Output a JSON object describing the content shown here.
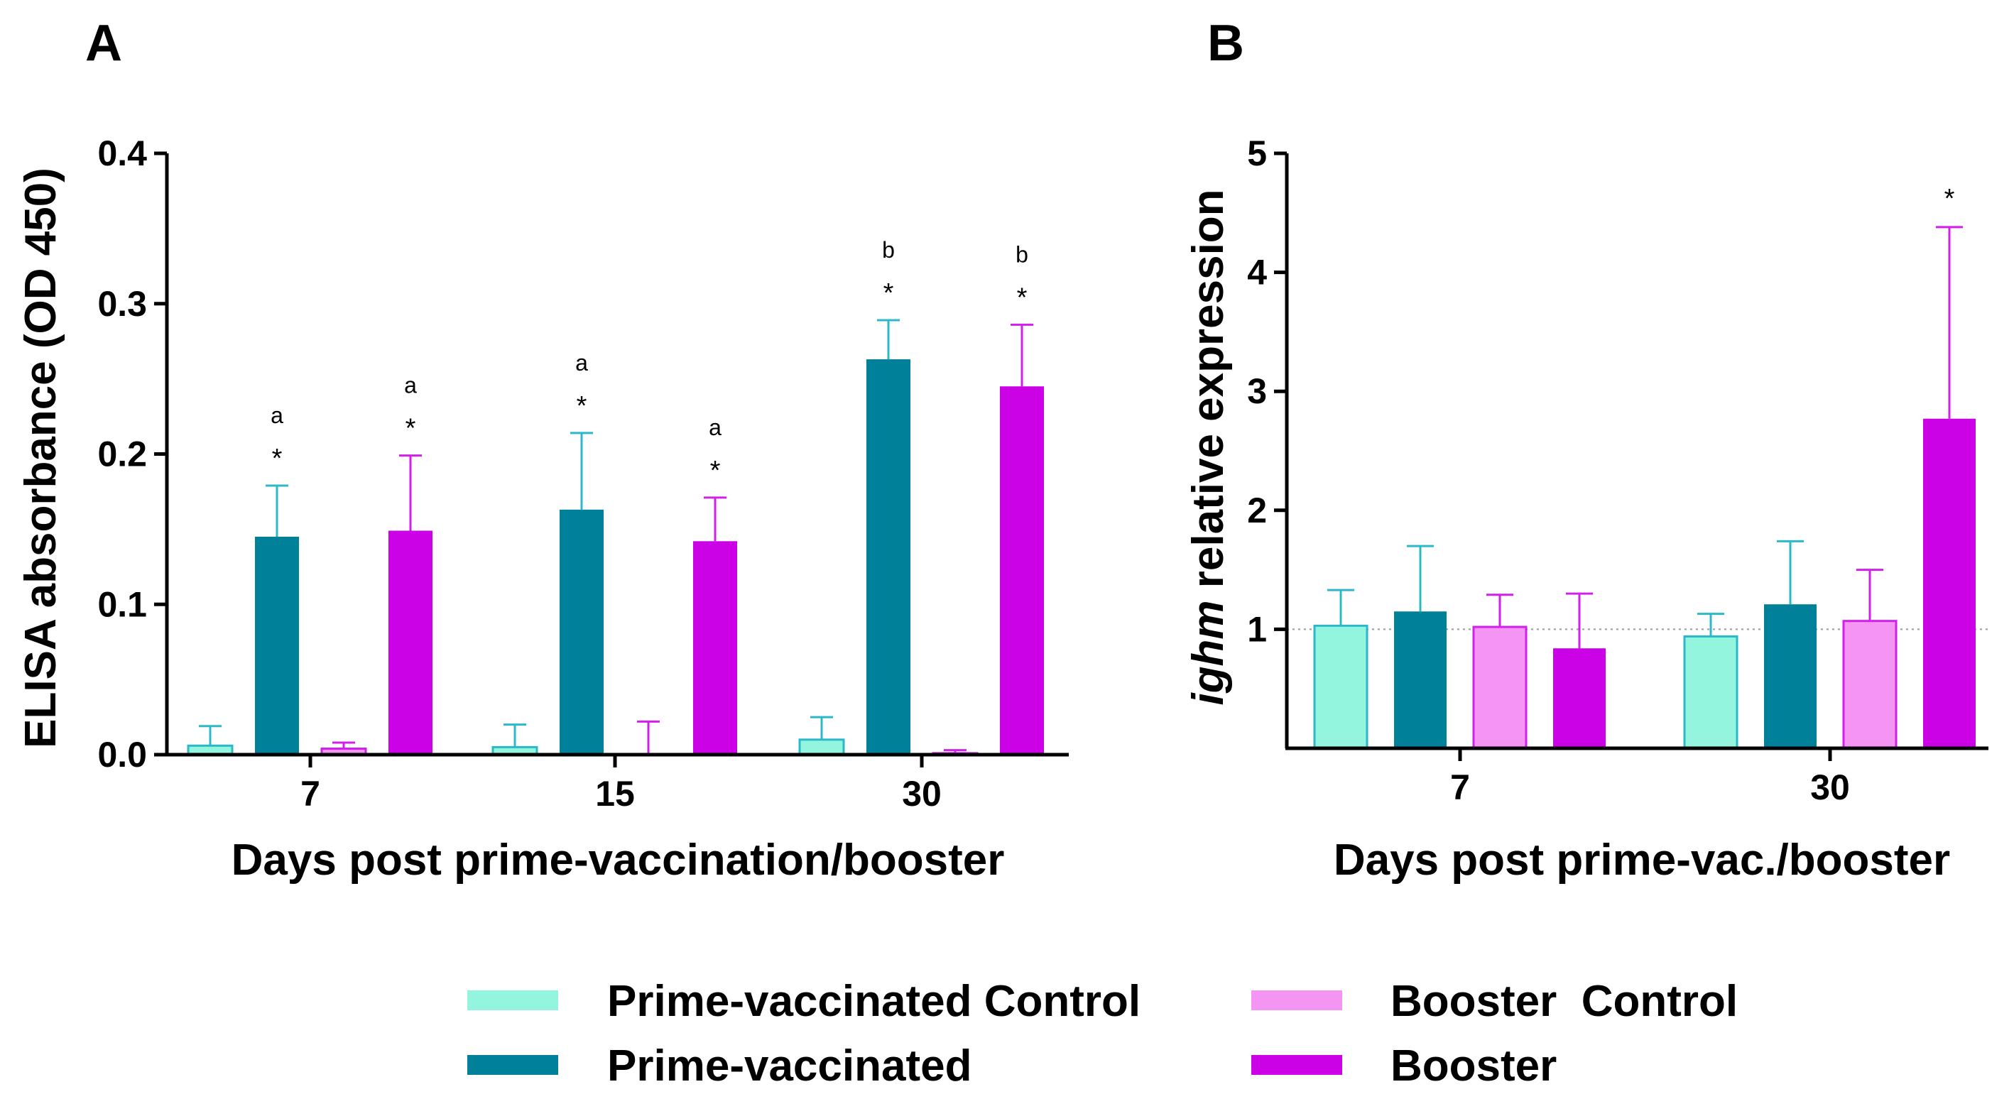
{
  "panel_a_label": "A",
  "panel_b_label": "B",
  "colors": {
    "prime_control": "#93F5DE",
    "prime": "#01809A",
    "booster_control": "#F595F3",
    "booster": "#CC02E6",
    "prime_err": "#2BB9C9",
    "booster_err": "#D31FEA"
  },
  "legend": {
    "items": [
      {
        "key": "prime_control",
        "label": "Prime-vaccinated Control"
      },
      {
        "key": "booster_control",
        "label": "Booster  Control"
      },
      {
        "key": "prime",
        "label": "Prime-vaccinated"
      },
      {
        "key": "booster",
        "label": "Booster"
      }
    ]
  },
  "chart_data": [
    {
      "type": "bar",
      "panel": "A",
      "title": "",
      "xlabel": "Days post prime-vaccination/booster",
      "ylabel": "ELISA absorbance (OD 450)",
      "ylim": [
        0,
        0.4
      ],
      "yticks": [
        "0.0",
        "0.1",
        "0.2",
        "0.3",
        "0.4"
      ],
      "categories": [
        "7",
        "15",
        "30"
      ],
      "series": [
        {
          "name": "Prime-vaccinated Control",
          "key": "prime_control",
          "values": [
            0.006,
            0.005,
            0.01
          ],
          "errors": [
            0.013,
            0.015,
            0.015
          ],
          "annotations": [
            [
              "",
              ""
            ],
            [
              "",
              ""
            ],
            [
              "",
              ""
            ]
          ]
        },
        {
          "name": "Prime-vaccinated",
          "key": "prime",
          "values": [
            0.145,
            0.163,
            0.263
          ],
          "errors": [
            0.034,
            0.051,
            0.026
          ],
          "annotations": [
            [
              "a",
              "*"
            ],
            [
              "a",
              "*"
            ],
            [
              "b",
              "*"
            ]
          ]
        },
        {
          "name": "Booster  Control",
          "key": "booster_control",
          "values": [
            0.004,
            0.0,
            0.001
          ],
          "errors": [
            0.004,
            0.022,
            0.002
          ],
          "annotations": [
            [
              "",
              ""
            ],
            [
              "",
              ""
            ],
            [
              "",
              ""
            ]
          ]
        },
        {
          "name": "Booster",
          "key": "booster",
          "values": [
            0.149,
            0.142,
            0.245
          ],
          "errors": [
            0.05,
            0.029,
            0.041
          ],
          "annotations": [
            [
              "a",
              "*"
            ],
            [
              "a",
              "*"
            ],
            [
              "b",
              "*"
            ]
          ]
        }
      ]
    },
    {
      "type": "bar",
      "panel": "B",
      "title": "",
      "xlabel": "Days post prime-vac./booster",
      "ylabel_italic": "ighm",
      "ylabel_rest": " relative expression",
      "ylim": [
        0,
        5
      ],
      "yticks": [
        "1",
        "2",
        "3",
        "4",
        "5"
      ],
      "reference_line": 1,
      "categories": [
        "7",
        "30"
      ],
      "series": [
        {
          "name": "Prime-vaccinated Control",
          "key": "prime_control",
          "values": [
            1.03,
            0.94
          ],
          "errors": [
            0.3,
            0.19
          ],
          "annotations": [
            "",
            ""
          ]
        },
        {
          "name": "Prime-vaccinated",
          "key": "prime",
          "values": [
            1.15,
            1.21
          ],
          "errors": [
            0.55,
            0.53
          ],
          "annotations": [
            "",
            ""
          ]
        },
        {
          "name": "Booster  Control",
          "key": "booster_control",
          "values": [
            1.02,
            1.07
          ],
          "errors": [
            0.27,
            0.43
          ],
          "annotations": [
            "",
            ""
          ]
        },
        {
          "name": "Booster",
          "key": "booster",
          "values": [
            0.84,
            2.77
          ],
          "errors": [
            0.46,
            1.61
          ],
          "annotations": [
            "",
            "*"
          ]
        }
      ]
    }
  ]
}
